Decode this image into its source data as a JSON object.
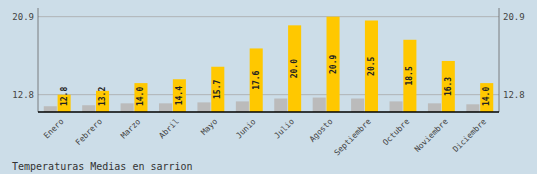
{
  "chart_data": {
    "type": "bar",
    "title": "Temperaturas Medias en sarrion",
    "categories": [
      "Enero",
      "Febrero",
      "Marzo",
      "Abril",
      "Mayo",
      "Junio",
      "Julio",
      "Agosto",
      "Septiembre",
      "Octubre",
      "Noviembre",
      "Diciembre"
    ],
    "series": [
      {
        "color": "#BBBBBB",
        "values": [
          11.6,
          11.7,
          11.9,
          11.9,
          12.0,
          12.1,
          12.4,
          12.5,
          12.4,
          12.1,
          11.9,
          11.8
        ]
      },
      {
        "color": "#FFC800",
        "values": [
          12.8,
          13.2,
          14.0,
          14.4,
          15.7,
          17.6,
          20.0,
          20.9,
          20.5,
          18.5,
          16.3,
          14.0
        ],
        "data_labels": true,
        "value_labels": [
          "12.8",
          "13.2",
          "14.0",
          "14.4",
          "15.7",
          "17.6",
          "20.0",
          "20.9",
          "20.5",
          "18.5",
          "16.3",
          "14.0"
        ]
      }
    ],
    "ylim": [
      11.0,
      21.8
    ],
    "yticks": [
      12.8,
      20.9
    ],
    "grid": true
  }
}
